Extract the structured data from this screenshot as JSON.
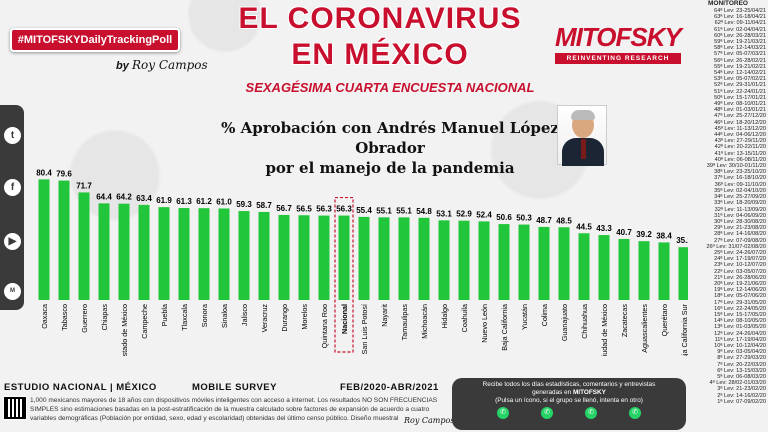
{
  "header": {
    "hashtag": "#MITOFSKYDailyTrackingPoll",
    "by": "by",
    "signature": "Roy Campos",
    "title_line1": "EL CORONAVIRUS",
    "title_line2": "EN MÉXICO",
    "subtitle": "SEXAGÉSIMA CUARTA ENCUESTA NACIONAL",
    "brand": "MITOFSKY",
    "brand_tagline": "REINVENTING RESEARCH"
  },
  "social_icons": [
    "twitter-icon",
    "facebook-icon",
    "youtube-icon",
    "mitofsky-icon"
  ],
  "chart_data": {
    "type": "bar",
    "title_line1": "% Aprobación con Andrés Manuel López Obrador",
    "title_line2": "por el manejo de la pandemia",
    "categories": [
      "Oaxaca",
      "Tabasco",
      "Guerrero",
      "Chiapas",
      "Estado de México",
      "Campeche",
      "Puebla",
      "Tlaxcala",
      "Sonora",
      "Sinaloa",
      "Jalisco",
      "Veracruz",
      "Durango",
      "Morelos",
      "Quintana Roo",
      "Nacional",
      "San Luis Potosí",
      "Nayarit",
      "Tamaulipas",
      "Michoacán",
      "Hidalgo",
      "Coahuila",
      "Nuevo León",
      "Baja California",
      "Yucatán",
      "Colima",
      "Guanajuato",
      "Chihuahua",
      "Ciudad de México",
      "Zacatecas",
      "Aguascalientes",
      "Querétaro",
      "Baja California Sur"
    ],
    "values": [
      80.4,
      79.6,
      71.7,
      64.4,
      64.2,
      63.4,
      61.9,
      61.3,
      61.2,
      61.0,
      59.3,
      58.7,
      56.7,
      56.5,
      56.3,
      56.3,
      55.4,
      55.1,
      55.1,
      54.8,
      53.1,
      52.9,
      52.4,
      50.6,
      50.3,
      48.7,
      48.5,
      44.5,
      43.3,
      40.7,
      39.2,
      38.4,
      35.2
    ],
    "highlight": "Nacional",
    "bar_color": "#22c63a",
    "highlight_color": "#c8102e",
    "ylim": [
      0,
      100
    ]
  },
  "monitor": {
    "title": "MONITOREO",
    "rows": [
      "64ª Lev: 23-25/04/21",
      "63ª Lev: 16-18/04/21",
      "62ª Lev: 09-11/04/21",
      "61ª Lev: 02-04/04/21",
      "60ª Lev: 26-28/03/21",
      "59ª Lev: 19-21/03/21",
      "58ª Lev: 12-14/03/21",
      "57ª Lev: 05-07/03/21",
      "56ª Lev: 26-28/02/21",
      "55ª Lev: 19-21/02/21",
      "54ª Lev: 12-14/02/21",
      "53ª Lev: 05-07/02/21",
      "52ª Lev: 29-31/01/21",
      "51ª Lev: 22-24/01/21",
      "50ª Lev: 15-17/01/21",
      "49ª Lev: 08-10/01/21",
      "48ª Lev: 01-03/01/21",
      "47ª Lev: 25-27/12/20",
      "46ª Lev: 18-20/12/20",
      "45ª Lev: 11-13/12/20",
      "44ª Lev: 04-06/12/20",
      "43ª Lev: 27-29/11/20",
      "42ª Lev: 20-22/11/20",
      "41ª Lev: 13-15/11/20",
      "40ª Lev: 06-08/11/20",
      "39ª Lev: 30/10-01/11/20",
      "38ª Lev: 23-25/10/20",
      "37ª Lev: 16-18/10/20",
      "36ª Lev: 09-11/10/20",
      "35ª Lev: 02-04/10/20",
      "34ª Lev: 25-27/09/20",
      "33ª Lev: 18-20/09/20",
      "32ª Lev: 11-13/09/20",
      "31ª Lev: 04-06/09/20",
      "30ª Lev: 28-30/08/20",
      "29ª Lev: 21-23/08/20",
      "28ª Lev: 14-16/08/20",
      "27ª Lev: 07-09/08/20",
      "26ª Lev: 31/07-02/08/20",
      "25ª Lev: 24-26/07/20",
      "24ª Lev: 17-19/07/20",
      "23ª Lev: 10-12/07/20",
      "22ª Lev: 03-05/07/20",
      "21ª Lev: 26-28/06/20",
      "20ª Lev: 19-21/06/20",
      "19ª Lev: 12-14/06/20",
      "18ª Lev: 05-07/06/20",
      "17ª Lev: 29-31/05/20",
      "16ª Lev: 22-24/05/20",
      "15ª Lev: 15-17/05/20",
      "14ª Lev: 08-10/05/20",
      "13ª Lev: 01-03/05/20",
      "12ª Lev: 24-26/04/20",
      "11ª Lev: 17-19/04/20",
      "10ª Lev: 10-12/04/20",
      "9ª Lev: 03-05/04/20",
      "8ª Lev: 27-29/03/20",
      "7ª Lev: 20-22/03/20",
      "6ª Lev: 13-15/03/20",
      "5ª Lev: 06-08/03/20",
      "4ª Lev: 28/02-01/03/20",
      "3ª Lev: 21-23/02/20",
      "2ª Lev: 14-16/02/20",
      "1ª Lev: 07-09/02/20"
    ]
  },
  "footer": {
    "study": "ESTUDIO NACIONAL | MÉXICO",
    "survey": "MOBILE SURVEY",
    "dates": "FEB/2020-ABR/2021",
    "methodology": "1,000 mexicanos mayores de 18 años con dispositivos móviles inteligentes con acceso a internet. Los resultados NO SON FRECUENCIAS SIMPLES sino estimaciones basadas en la post-estratificación de la muestra calculado sobre factores de expansión de acuerdo a cuatro variables demográficas (Población por entidad, sexo, edad y escolaridad) obtenidas del último censo público. Diseño muestral",
    "signature": "Roy Campos"
  },
  "promo": {
    "line1": "Recibe todos los días estadísticas, comentarios y entrevistas",
    "line2_prefix": "generadas en",
    "line2_brand": "MITOFSKY",
    "line3": "(Pulsa un ícono, si el grupo se llenó, intenta en otro)"
  }
}
